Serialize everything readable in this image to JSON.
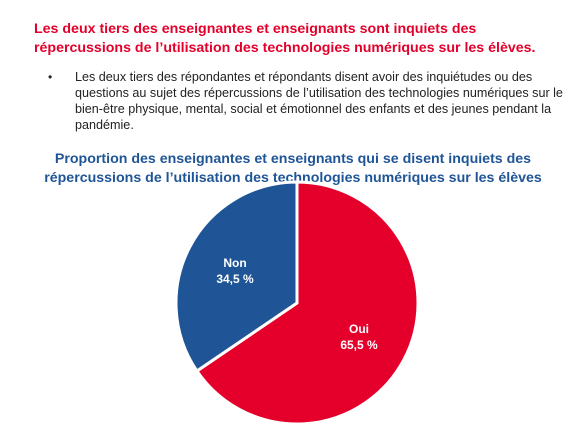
{
  "headline": "Les deux tiers des enseignantes et enseignants sont inquiets des répercussions de l’utilisation des technologies numériques sur les élèves.",
  "bullets": [
    "Les deux tiers des répondantes et répondants disent avoir des inquiétudes ou des questions au sujet des répercussions de l’utilisation des technologies numériques sur le bien-être physique, mental, social et émotionnel des enfants et des jeunes pendant la pandémie."
  ],
  "bullet_symbol": "•",
  "chart_data": {
    "type": "pie",
    "title": "Proportion des enseignantes et enseignants qui se disent inquiets des répercussions de l’utilisation des technologies numériques sur les élèves",
    "slices": [
      {
        "name": "Oui",
        "value": 65.5,
        "label": "65,5 %",
        "color": "#e4002b"
      },
      {
        "name": "Non",
        "value": 34.5,
        "label": "34,5 %",
        "color": "#1f5597"
      }
    ],
    "start": "12 o'clock",
    "direction": "clockwise",
    "legend": "none",
    "stroke_color": "#ffffff"
  }
}
